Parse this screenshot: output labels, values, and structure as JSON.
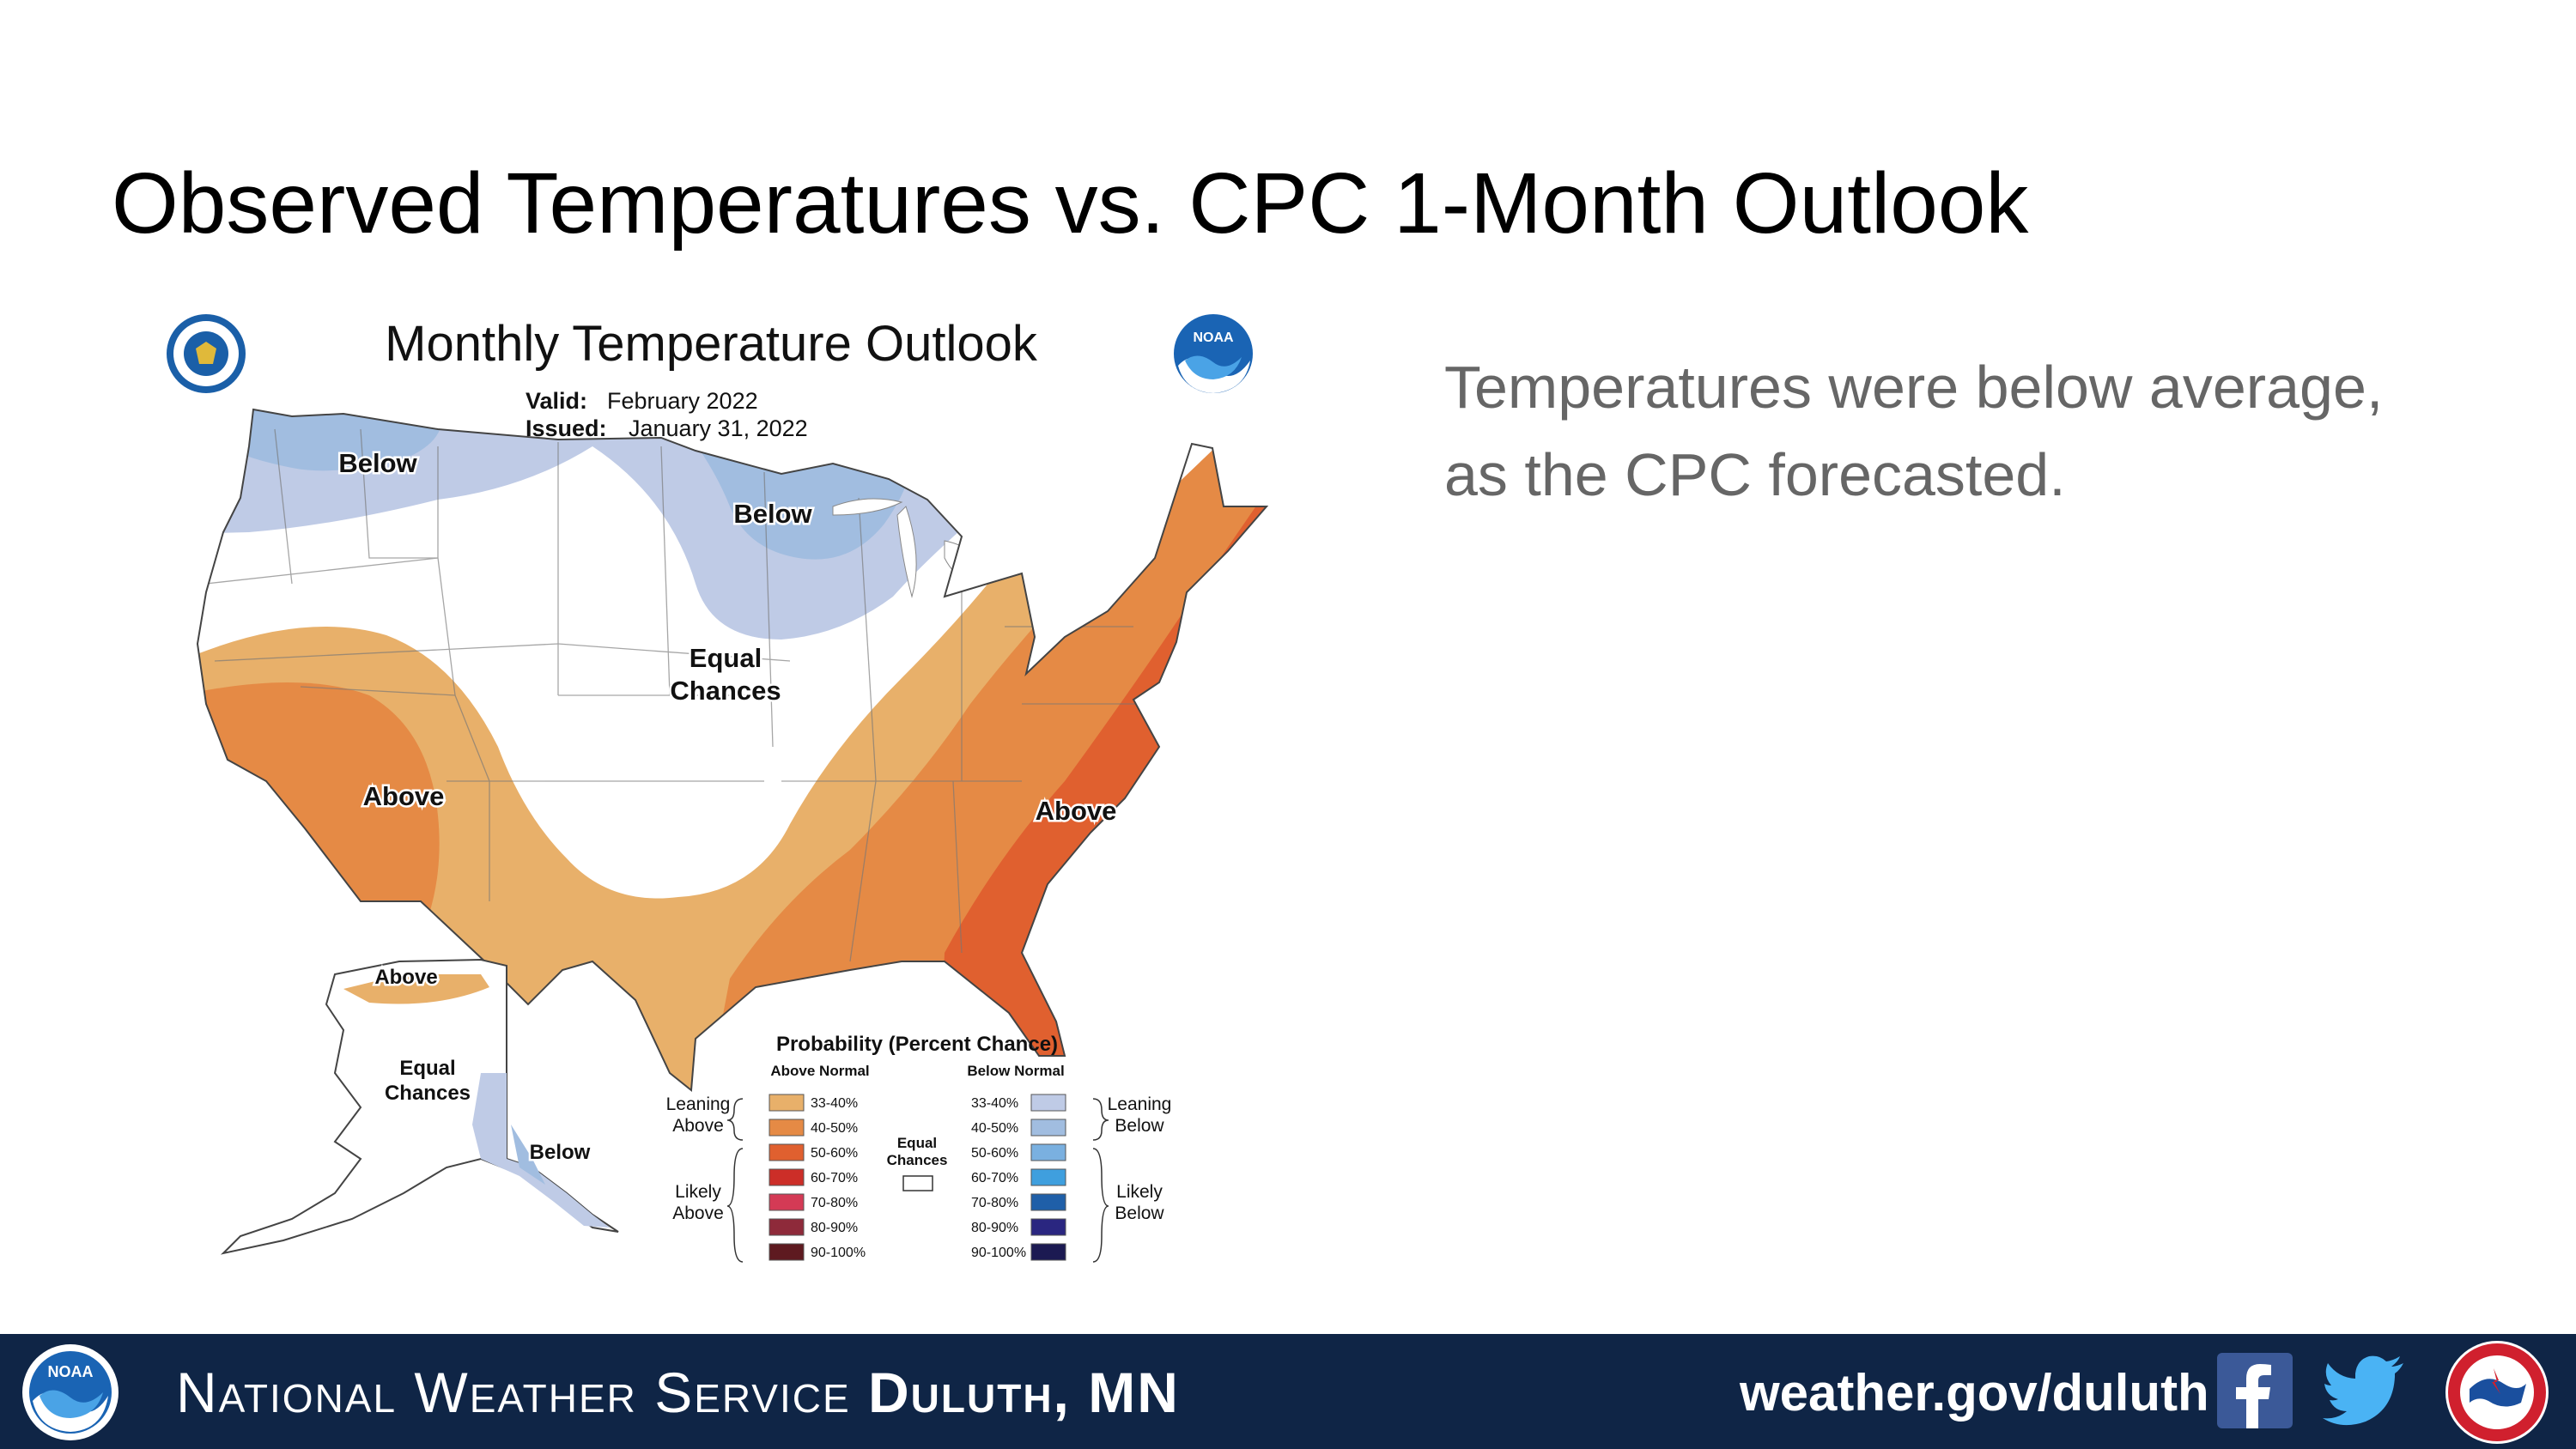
{
  "slide": {
    "title": "Observed Temperatures vs. CPC 1-Month Outlook",
    "body_lines": [
      "Temperatures were below average,",
      "as the CPC forecasted."
    ]
  },
  "map": {
    "title": "Monthly Temperature Outlook",
    "valid_label": "Valid:",
    "valid_value": "February 2022",
    "issued_label": "Issued:",
    "issued_value": "January 31, 2022",
    "region_labels": {
      "nw_below": "Below",
      "nc_below": "Below",
      "center_equal_1": "Equal",
      "center_equal_2": "Chances",
      "sw_above": "Above",
      "se_above": "Above",
      "ak_above": "Above",
      "ak_equal_1": "Equal",
      "ak_equal_2": "Chances",
      "ak_below": "Below"
    },
    "legend": {
      "title": "Probability (Percent Chance)",
      "above_header": "Above Normal",
      "below_header": "Below Normal",
      "equal_1": "Equal",
      "equal_2": "Chances",
      "leaning_above_1": "Leaning",
      "leaning_above_2": "Above",
      "likely_above_1": "Likely",
      "likely_above_2": "Above",
      "leaning_below_1": "Leaning",
      "leaning_below_2": "Below",
      "likely_below_1": "Likely",
      "likely_below_2": "Below",
      "above_items": [
        {
          "label": "33-40%",
          "color": "#e8b06a"
        },
        {
          "label": "40-50%",
          "color": "#e58a45"
        },
        {
          "label": "50-60%",
          "color": "#e0602f"
        },
        {
          "label": "60-70%",
          "color": "#cc2e28"
        },
        {
          "label": "70-80%",
          "color": "#d43a55"
        },
        {
          "label": "80-90%",
          "color": "#8e2a3a"
        },
        {
          "label": "90-100%",
          "color": "#5e1a20"
        }
      ],
      "below_items": [
        {
          "label": "33-40%",
          "color": "#bfcbe6"
        },
        {
          "label": "40-50%",
          "color": "#a1bde0"
        },
        {
          "label": "50-60%",
          "color": "#7ab0e0"
        },
        {
          "label": "60-70%",
          "color": "#3f9fde"
        },
        {
          "label": "70-80%",
          "color": "#1f5fa8"
        },
        {
          "label": "80-90%",
          "color": "#2a2680"
        },
        {
          "label": "90-100%",
          "color": "#1c1a52"
        }
      ]
    }
  },
  "footer": {
    "org": "National Weather Service",
    "office": "Duluth, MN",
    "url": "weather.gov/duluth",
    "background": "#0f2546",
    "icons": [
      "noaa-logo",
      "facebook-icon",
      "twitter-icon",
      "nws-logo"
    ]
  }
}
